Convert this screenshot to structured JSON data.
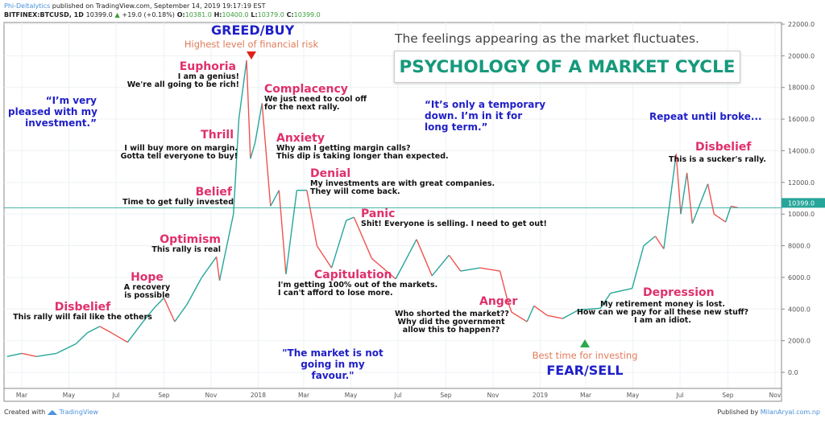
{
  "header": {
    "publisher": "Phi-Deltalytics",
    "published_text": "published on TradingView.com, September 14, 2019 19:17:19 EST",
    "symbol": "BITFINEX:BTCUSD, 1D",
    "last": "10399.0",
    "change": "+19.0 (+0.18%)",
    "o_label": "O:",
    "o": "10381.0",
    "h_label": "H:",
    "h": "10400.0",
    "l_label": "L:",
    "l": "10379.0",
    "c_label": "C:",
    "c": "10399.0"
  },
  "subtitle": "The feelings appearing as the market fluctuates.",
  "title": "PSYCHOLOGY OF A MARKET CYCLE",
  "annotations": {
    "greed": "GREED/BUY",
    "greed_note": "Highest level of financial risk",
    "fear": "FEAR/SELL",
    "fear_note": "Best time for investing",
    "phases": [
      {
        "name": "Disbelief",
        "text": [
          "This rally will fail like the others"
        ]
      },
      {
        "name": "Hope",
        "text": [
          "A recovery",
          "is possible"
        ]
      },
      {
        "name": "Optimism",
        "text": [
          "This rally is real"
        ]
      },
      {
        "name": "Belief",
        "text": [
          "Time to get fully invested"
        ]
      },
      {
        "name": "Thrill",
        "text": [
          "I will buy more on margin.",
          "Gotta tell everyone to buy!"
        ]
      },
      {
        "name": "Euphoria",
        "text": [
          "I am a genius!",
          "We're all going to be rich!"
        ]
      },
      {
        "name": "Complacency",
        "text": [
          "We just need to cool off",
          "for the next rally."
        ]
      },
      {
        "name": "Anxiety",
        "text": [
          "Why am I getting margin calls?",
          "This dip is taking longer than expected."
        ]
      },
      {
        "name": "Denial",
        "text": [
          "My investments are with great companies.",
          "They will come back."
        ]
      },
      {
        "name": "Panic",
        "text": [
          "Shit! Everyone is selling. I need to get out!"
        ]
      },
      {
        "name": "Capitulation",
        "text": [
          "I'm getting 100% out of the markets.",
          "I can't afford to lose more."
        ]
      },
      {
        "name": "Anger",
        "text": [
          "Who shorted the market??",
          "Why did the government",
          "allow this to happen??"
        ]
      },
      {
        "name": "Depression",
        "text": [
          "My retirement money is lost.",
          "How can we pay for all these new stuff?",
          "I am an idiot."
        ]
      },
      {
        "name": "Disbelief",
        "text": [
          "This is a sucker's rally."
        ]
      }
    ],
    "quotes": [
      "“I’m very",
      "pleased with my",
      "investment.”",
      "“It’s only a temporary",
      "down. I’m in it for",
      "long term.”",
      "\"The market is not",
      "going in my",
      "favour.\"",
      "Repeat until broke..."
    ]
  },
  "footer": {
    "created": "Created with",
    "brand": "TradingView",
    "published_by": "Published by",
    "site": "MilanAryal.com.np"
  },
  "colors": {
    "up": "#26a69a",
    "down": "#ef5350",
    "last_price": "#26a69a",
    "phase": "#e0306a",
    "quote": "#1f1fc8",
    "title": "#16997c"
  },
  "chart_data": {
    "type": "line",
    "symbol": "BITFINEX:BTCUSD",
    "interval": "1D",
    "ylim": [
      -1000,
      22000
    ],
    "grid": true,
    "last_price": 10399.0,
    "y_ticks": [
      "22000.0",
      "20000.0",
      "18000.0",
      "16000.0",
      "14000.0",
      "12000.0",
      "10000.0",
      "8000.0",
      "6000.0",
      "4000.0",
      "2000.0",
      "0.0"
    ],
    "x_ticks": [
      [
        "2017-03-01",
        "Mar"
      ],
      [
        "2017-05-01",
        "May"
      ],
      [
        "2017-07-01",
        "Jul"
      ],
      [
        "2017-09-01",
        "Sep"
      ],
      [
        "2017-11-01",
        "Nov"
      ],
      [
        "2018-01-01",
        "2018"
      ],
      [
        "2018-03-01",
        "Mar"
      ],
      [
        "2018-05-01",
        "May"
      ],
      [
        "2018-07-01",
        "Jul"
      ],
      [
        "2018-09-01",
        "Sep"
      ],
      [
        "2018-11-01",
        "Nov"
      ],
      [
        "2019-01-01",
        "2019"
      ],
      [
        "2019-03-01",
        "Mar"
      ],
      [
        "2019-05-01",
        "May"
      ],
      [
        "2019-07-01",
        "Jul"
      ],
      [
        "2019-09-01",
        "Sep"
      ],
      [
        "2019-11-01",
        "Nov"
      ]
    ],
    "series": [
      {
        "x": [
          "2017-02-10",
          "2017-03-01",
          "2017-03-20",
          "2017-04-15",
          "2017-05-10",
          "2017-05-25",
          "2017-06-10",
          "2017-06-25",
          "2017-07-16",
          "2017-08-05",
          "2017-08-20",
          "2017-09-01",
          "2017-09-15",
          "2017-10-01",
          "2017-10-20",
          "2017-11-08",
          "2017-11-12",
          "2017-11-30",
          "2017-12-07",
          "2017-12-17",
          "2017-12-22",
          "2017-12-28",
          "2018-01-06",
          "2018-01-17",
          "2018-01-28",
          "2018-02-06",
          "2018-02-20",
          "2018-03-05",
          "2018-03-18",
          "2018-04-06",
          "2018-04-25",
          "2018-05-05",
          "2018-05-28",
          "2018-06-28",
          "2018-07-25",
          "2018-08-14",
          "2018-09-05",
          "2018-09-20",
          "2018-10-15",
          "2018-11-10",
          "2018-11-20",
          "2018-11-25",
          "2018-12-15",
          "2018-12-24",
          "2019-01-10",
          "2019-01-30",
          "2019-02-20",
          "2019-03-20",
          "2019-04-02",
          "2019-04-30",
          "2019-05-15",
          "2019-05-30",
          "2019-06-10",
          "2019-06-26",
          "2019-07-02",
          "2019-07-10",
          "2019-07-17",
          "2019-08-06",
          "2019-08-14",
          "2019-08-29",
          "2019-09-05",
          "2019-09-14"
        ],
        "y": [
          1000,
          1200,
          1000,
          1200,
          1800,
          2500,
          2900,
          2500,
          1900,
          3200,
          4100,
          4700,
          3200,
          4300,
          6000,
          7300,
          5800,
          10000,
          16000,
          19700,
          13500,
          14500,
          17000,
          10500,
          11500,
          6200,
          11500,
          11500,
          8000,
          6600,
          9600,
          9800,
          7200,
          5900,
          8400,
          6100,
          7400,
          6400,
          6600,
          6400,
          4500,
          3800,
          3200,
          4200,
          3600,
          3400,
          3950,
          4050,
          5000,
          5300,
          8000,
          8600,
          7800,
          13800,
          10000,
          12600,
          9400,
          11900,
          10000,
          9500,
          10500,
          10399
        ]
      }
    ]
  }
}
